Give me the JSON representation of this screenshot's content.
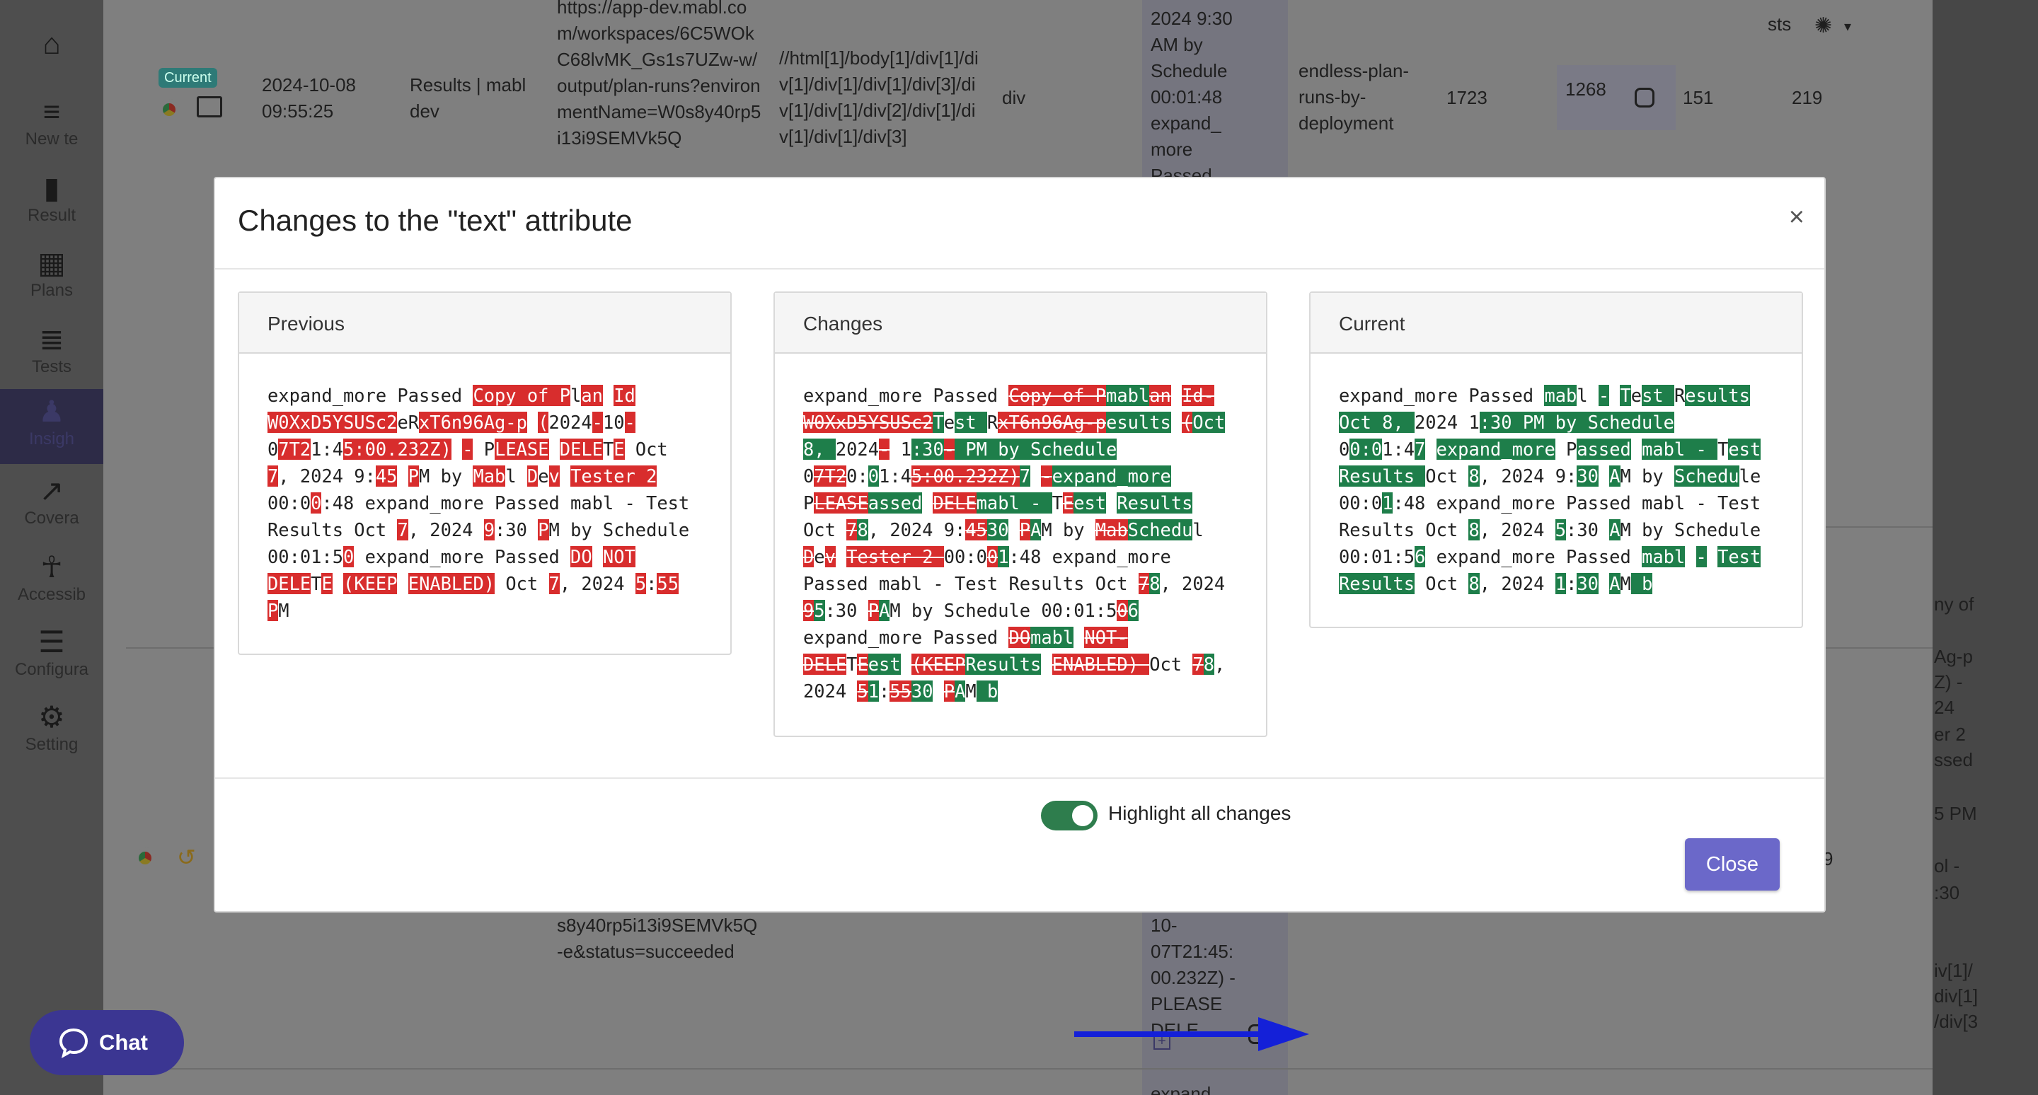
{
  "sidebar": {
    "items": [
      {
        "label": "New te",
        "icon": "new-test-icon"
      },
      {
        "label": "Result",
        "icon": "results-icon"
      },
      {
        "label": "Plans",
        "icon": "plans-icon"
      },
      {
        "label": "Tests",
        "icon": "tests-icon"
      },
      {
        "label": "Insigh",
        "icon": "insights-icon"
      },
      {
        "label": "Covera",
        "icon": "coverage-icon"
      },
      {
        "label": "Accessib",
        "icon": "accessibility-icon"
      },
      {
        "label": "Configura",
        "icon": "configure-icon"
      },
      {
        "label": "Setting",
        "icon": "settings-icon"
      }
    ]
  },
  "header": {
    "workspace_partial": "sts",
    "history_link": "history"
  },
  "row1": {
    "badge": "Current",
    "date": "2024-10-08",
    "time": "09:55:25",
    "page_title": "Results | mabl dev",
    "url": "https://app-dev.mabl.com/workspaces/6C5WOkC68lvMK_Gs1s7UZw-w/output/plan-runs?environmentName=W0s8y40rp5i13i9SEMVk5Q",
    "xpath": "//html[1]/body[1]/div[1]/div[1]/div[1]/div[1]/div[3]/div[1]/div[1]/div[2]/div[1]/div[1]/div[1]/div[3]",
    "tag": "div",
    "text_cell": "2024 9:30\nAM by\nSchedule\n00:01:48\nexpand_\nmore\nPassed",
    "plan": "endless-plan-runs-by-deployment",
    "x": "1723",
    "y_hl": "1268",
    "w": "151",
    "h": "219"
  },
  "row2": {
    "url_tail": "s8y40rp5i13i9SEMVk5Q\n-e&status=succeeded",
    "text_tail": "10-\n07T21:45:\n00.232Z) -\nPLEASE\nDELE",
    "expand_label": "expand",
    "right_val": "9"
  },
  "right_partial": {
    "lines": [
      "ny of",
      "Ag-p",
      "Z) -",
      "24",
      "er 2",
      "ssed",
      "5 PM",
      "ol -",
      ":30",
      "iv[1]/",
      "div[1]",
      "/div[3"
    ]
  },
  "modal": {
    "title": "Changes to the \"text\" attribute",
    "close_x": "×",
    "panels": {
      "previous": "Previous",
      "changes": "Changes",
      "current": "Current"
    },
    "toggle_label": "Highlight all changes",
    "toggle_on": true,
    "close_button": "Close"
  },
  "chat": {
    "label": "Chat"
  },
  "colors": {
    "deleted": "#d82d2d",
    "added": "#1e7e4a",
    "accent": "#6b68c9",
    "chat": "#3b3692"
  }
}
